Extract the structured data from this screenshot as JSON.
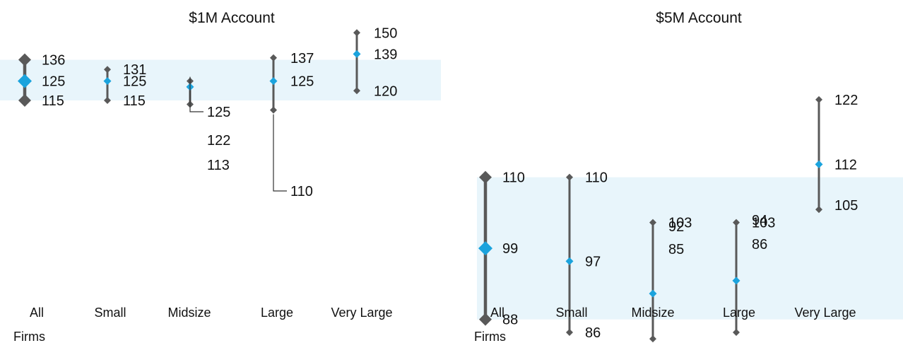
{
  "chart_data": [
    {
      "type": "range",
      "title": "$1M Account",
      "categories": [
        "All Firms",
        "Small",
        "Midsize",
        "Large",
        "Very Large"
      ],
      "category_lines": [
        [
          "All",
          "Firms"
        ],
        [
          "Small"
        ],
        [
          "Midsize"
        ],
        [
          "Large"
        ],
        [
          "Very Large"
        ]
      ],
      "series": [
        {
          "name": "",
          "high": 136,
          "median": 125,
          "low": 115
        },
        {
          "name": "",
          "high": 131,
          "median": 125,
          "low": 115
        },
        {
          "name": "",
          "high": 125,
          "median": 122,
          "low": 113
        },
        {
          "name": "",
          "high": 137,
          "median": 125,
          "low": 110
        },
        {
          "name": "",
          "high": 150,
          "median": 139,
          "low": 120
        }
      ],
      "highlight_band": [
        115,
        136
      ],
      "ylim": [
        80,
        160
      ],
      "colors": {
        "band": "#e8f5fb",
        "line": "#595959",
        "median": "#1ba3dd"
      }
    },
    {
      "type": "range",
      "title": "$5M Account",
      "categories": [
        "All Firms",
        "Small",
        "Midsize",
        "Large",
        "Very Large"
      ],
      "category_lines": [
        [
          "All",
          "Firms"
        ],
        [
          "Small"
        ],
        [
          "Midsize"
        ],
        [
          "Large"
        ],
        [
          "Very Large"
        ]
      ],
      "series": [
        {
          "name": "",
          "high": 110,
          "median": 99,
          "low": 88
        },
        {
          "name": "",
          "high": 110,
          "median": 97,
          "low": 86
        },
        {
          "name": "",
          "high": 103,
          "median": 92,
          "low": 85
        },
        {
          "name": "",
          "high": 103,
          "median": 94,
          "low": 86
        },
        {
          "name": "",
          "high": 122,
          "median": 112,
          "low": 105
        }
      ],
      "highlight_band": [
        88,
        110
      ],
      "ylim": [
        80,
        160
      ],
      "colors": {
        "band": "#e8f5fb",
        "line": "#595959",
        "median": "#1ba3dd"
      }
    }
  ]
}
